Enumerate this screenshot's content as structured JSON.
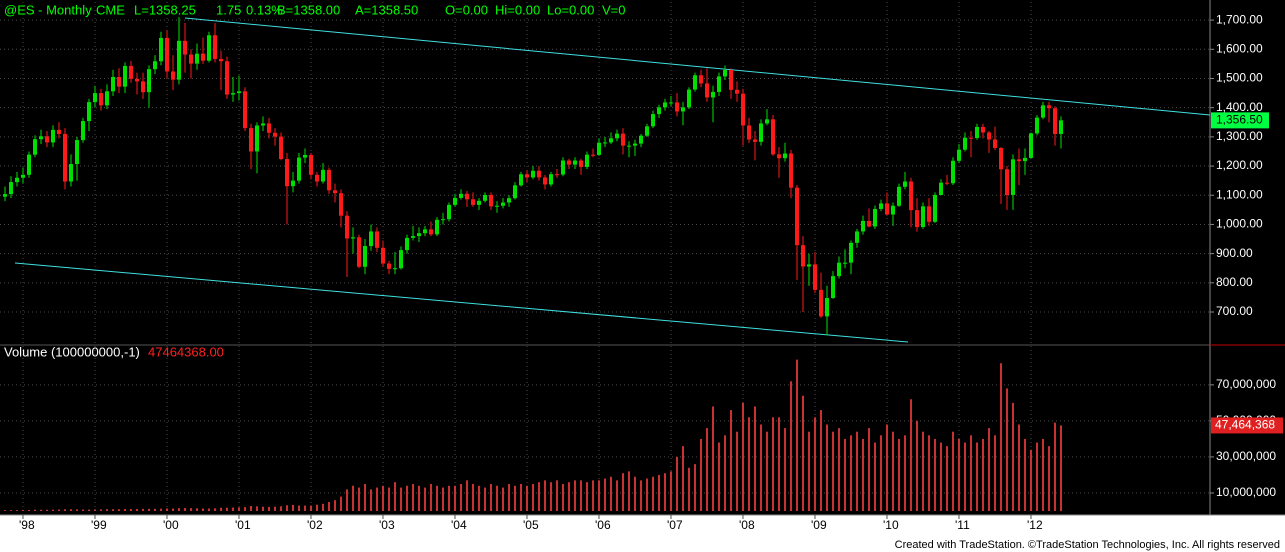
{
  "chart_data": [
    {
      "type": "candlestick",
      "title": "@ES - Monthly",
      "quote": [
        "CME",
        "L=1358.25",
        "1.75",
        "0.13%",
        "B=1358.00",
        "A=1358.50",
        "O=0.00",
        "Hi=0.00",
        "Lo=0.00",
        "V=0"
      ],
      "categories": [
        null,
        null,
        null,
        "'98",
        null,
        null,
        null,
        null,
        null,
        null,
        null,
        null,
        null,
        null,
        null,
        "'99",
        null,
        null,
        null,
        null,
        null,
        null,
        null,
        null,
        null,
        null,
        null,
        "'00",
        null,
        null,
        null,
        null,
        null,
        null,
        null,
        null,
        null,
        null,
        null,
        "'01",
        null,
        null,
        null,
        null,
        null,
        null,
        null,
        null,
        null,
        null,
        null,
        "'02",
        null,
        null,
        null,
        null,
        null,
        null,
        null,
        null,
        null,
        null,
        null,
        "'03",
        null,
        null,
        null,
        null,
        null,
        null,
        null,
        null,
        null,
        null,
        null,
        "'04",
        null,
        null,
        null,
        null,
        null,
        null,
        null,
        null,
        null,
        null,
        null,
        "'05",
        null,
        null,
        null,
        null,
        null,
        null,
        null,
        null,
        null,
        null,
        null,
        "'06",
        null,
        null,
        null,
        null,
        null,
        null,
        null,
        null,
        null,
        null,
        null,
        "'07",
        null,
        null,
        null,
        null,
        null,
        null,
        null,
        null,
        null,
        null,
        null,
        "'08",
        null,
        null,
        null,
        null,
        null,
        null,
        null,
        null,
        null,
        null,
        null,
        "'09",
        null,
        null,
        null,
        null,
        null,
        null,
        null,
        null,
        null,
        null,
        null,
        "'10",
        null,
        null,
        null,
        null,
        null,
        null,
        null,
        null,
        null,
        null,
        null,
        "'11",
        null,
        null,
        null,
        null,
        null,
        null,
        null,
        null,
        null,
        null,
        null,
        "'12",
        null,
        null,
        null,
        null,
        null
      ],
      "open": [
        1095,
        1104,
        1145,
        1160,
        1170,
        1239,
        1292,
        1302,
        1281,
        1324,
        1310,
        1147,
        1207,
        1289,
        1354,
        1419,
        1450,
        1408,
        1456,
        1505,
        1472,
        1543,
        1499,
        1490,
        1453,
        1532,
        1559,
        1639,
        1524,
        1496,
        1629,
        1582,
        1551,
        1585,
        1561,
        1648,
        1567,
        1559,
        1445,
        1450,
        1456,
        1330,
        1250,
        1339,
        1346,
        1314,
        1301,
        1224,
        1131,
        1150,
        1229,
        1238,
        1170,
        1147,
        1187,
        1117,
        1107,
        1030,
        952,
        956,
        855,
        926,
        976,
        920,
        866,
        848,
        850,
        912,
        954,
        960,
        970,
        983,
        966,
        1016,
        1018,
        1067,
        1091,
        1105,
        1086,
        1067,
        1081,
        1101,
        1062,
        1064,
        1075,
        1090,
        1134,
        1172,
        1161,
        1184,
        1161,
        1137,
        1172,
        1171,
        1219,
        1205,
        1219,
        1197,
        1239,
        1238,
        1280,
        1281,
        1295,
        1311,
        1270,
        1270,
        1277,
        1304,
        1336,
        1378,
        1401,
        1418,
        1418,
        1387,
        1401,
        1462,
        1511,
        1483,
        1435,
        1454,
        1507,
        1529,
        1461,
        1448,
        1339,
        1291,
        1283,
        1346,
        1360,
        1240,
        1227,
        1243,
        1126,
        929,
        856,
        863,
        776,
        685,
        748,
        823,
        869,
        869,
        937,
        976,
        1012,
        993,
        1053,
        1072,
        1034,
        1064,
        1129,
        1147,
        1049,
        991,
        1062,
        1009,
        1101,
        1143,
        1141,
        1218,
        1256,
        1297,
        1296,
        1334,
        1315,
        1291,
        1262,
        1189,
        1101,
        1223,
        1217,
        1228,
        1312,
        1366,
        1408,
        1398,
        1310
      ],
      "high": [
        1130,
        1165,
        1180,
        1195,
        1250,
        1305,
        1325,
        1320,
        1340,
        1350,
        1330,
        1240,
        1300,
        1365,
        1430,
        1475,
        1465,
        1480,
        1530,
        1535,
        1555,
        1560,
        1520,
        1520,
        1545,
        1580,
        1660,
        1665,
        1580,
        1710,
        1690,
        1600,
        1620,
        1640,
        1660,
        1690,
        1595,
        1575,
        1505,
        1510,
        1470,
        1345,
        1350,
        1370,
        1365,
        1330,
        1315,
        1245,
        1180,
        1245,
        1260,
        1245,
        1180,
        1210,
        1195,
        1140,
        1120,
        1045,
        990,
        965,
        950,
        1000,
        990,
        945,
        875,
        905,
        925,
        965,
        995,
        990,
        995,
        1010,
        1025,
        1040,
        1075,
        1105,
        1120,
        1115,
        1110,
        1090,
        1110,
        1110,
        1080,
        1090,
        1100,
        1145,
        1180,
        1185,
        1200,
        1200,
        1170,
        1180,
        1190,
        1230,
        1225,
        1230,
        1225,
        1250,
        1260,
        1295,
        1300,
        1315,
        1325,
        1330,
        1285,
        1290,
        1310,
        1345,
        1390,
        1410,
        1430,
        1440,
        1450,
        1420,
        1470,
        1520,
        1530,
        1535,
        1475,
        1520,
        1545,
        1535,
        1490,
        1465,
        1365,
        1320,
        1360,
        1395,
        1375,
        1265,
        1280,
        1255,
        1135,
        960,
        900,
        905,
        835,
        790,
        840,
        890,
        915,
        945,
        985,
        1030,
        1055,
        1065,
        1085,
        1110,
        1075,
        1140,
        1180,
        1160,
        1090,
        1075,
        1090,
        1110,
        1155,
        1170,
        1230,
        1275,
        1315,
        1320,
        1345,
        1345,
        1320,
        1335,
        1265,
        1200,
        1240,
        1260,
        1260,
        1315,
        1375,
        1420,
        1420,
        1405,
        1370
      ],
      "low": [
        1080,
        1090,
        1130,
        1140,
        1160,
        1230,
        1275,
        1265,
        1265,
        1295,
        1120,
        1130,
        1150,
        1280,
        1320,
        1400,
        1390,
        1395,
        1440,
        1450,
        1450,
        1485,
        1445,
        1430,
        1400,
        1515,
        1545,
        1500,
        1460,
        1480,
        1520,
        1500,
        1530,
        1550,
        1555,
        1555,
        1460,
        1430,
        1420,
        1425,
        1320,
        1190,
        1175,
        1320,
        1295,
        1270,
        1220,
        1000,
        1110,
        1140,
        1210,
        1155,
        1130,
        1140,
        1105,
        1075,
        990,
        820,
        900,
        850,
        830,
        910,
        905,
        855,
        830,
        830,
        845,
        900,
        945,
        940,
        960,
        960,
        960,
        1000,
        1010,
        1060,
        1085,
        1060,
        1060,
        1050,
        1075,
        1050,
        1040,
        1055,
        1060,
        1085,
        1130,
        1145,
        1155,
        1150,
        1120,
        1130,
        1160,
        1165,
        1190,
        1190,
        1170,
        1190,
        1230,
        1235,
        1265,
        1275,
        1285,
        1240,
        1230,
        1235,
        1265,
        1300,
        1330,
        1365,
        1390,
        1405,
        1370,
        1340,
        1395,
        1455,
        1470,
        1420,
        1350,
        1440,
        1495,
        1430,
        1420,
        1270,
        1280,
        1220,
        1270,
        1340,
        1235,
        1160,
        1215,
        1090,
        810,
        700,
        790,
        765,
        680,
        620,
        745,
        815,
        850,
        830,
        920,
        965,
        990,
        985,
        1045,
        1030,
        995,
        1060,
        1120,
        990,
        975,
        985,
        995,
        1005,
        1100,
        1135,
        1135,
        1210,
        1250,
        1230,
        1290,
        1295,
        1245,
        1255,
        1070,
        1050,
        1050,
        1135,
        1170,
        1225,
        1305,
        1360,
        1350,
        1270,
        1260
      ],
      "close": [
        1104,
        1145,
        1160,
        1170,
        1239,
        1292,
        1302,
        1281,
        1324,
        1310,
        1147,
        1207,
        1289,
        1354,
        1419,
        1450,
        1408,
        1456,
        1505,
        1472,
        1543,
        1499,
        1490,
        1453,
        1532,
        1559,
        1639,
        1524,
        1496,
        1629,
        1582,
        1551,
        1585,
        1561,
        1648,
        1567,
        1559,
        1445,
        1450,
        1456,
        1330,
        1250,
        1339,
        1346,
        1314,
        1301,
        1224,
        1131,
        1150,
        1229,
        1238,
        1170,
        1147,
        1187,
        1117,
        1107,
        1030,
        952,
        956,
        855,
        926,
        976,
        920,
        866,
        848,
        850,
        912,
        954,
        960,
        970,
        983,
        966,
        1016,
        1018,
        1067,
        1091,
        1105,
        1086,
        1067,
        1081,
        1101,
        1062,
        1064,
        1075,
        1090,
        1134,
        1172,
        1161,
        1184,
        1161,
        1137,
        1172,
        1171,
        1219,
        1205,
        1219,
        1197,
        1239,
        1238,
        1280,
        1281,
        1295,
        1311,
        1270,
        1270,
        1277,
        1304,
        1336,
        1378,
        1401,
        1418,
        1418,
        1387,
        1401,
        1462,
        1511,
        1483,
        1435,
        1454,
        1507,
        1529,
        1461,
        1448,
        1339,
        1291,
        1283,
        1346,
        1360,
        1240,
        1227,
        1243,
        1126,
        929,
        856,
        863,
        776,
        685,
        748,
        823,
        869,
        869,
        937,
        976,
        1012,
        993,
        1053,
        1072,
        1034,
        1064,
        1129,
        1147,
        1049,
        991,
        1062,
        1009,
        1101,
        1143,
        1141,
        1218,
        1256,
        1297,
        1296,
        1334,
        1315,
        1291,
        1262,
        1189,
        1101,
        1223,
        1217,
        1228,
        1312,
        1366,
        1408,
        1398,
        1310,
        1356.5
      ],
      "last_label": "1,356.50",
      "up_color": "#00e000",
      "down_color": "#ff1a1a",
      "last_color": "#00ff40",
      "ylim": [
        587,
        1762
      ],
      "yticks": [
        {
          "value": 700,
          "label": "700.00"
        },
        {
          "value": 800,
          "label": "800.00"
        },
        {
          "value": 900,
          "label": "900.00"
        },
        {
          "value": 1000,
          "label": "1,000.00"
        },
        {
          "value": 1100,
          "label": "1,100.00"
        },
        {
          "value": 1200,
          "label": "1,200.00"
        },
        {
          "value": 1300,
          "label": "1,300.00"
        },
        {
          "value": 1400,
          "label": "1,400.00"
        },
        {
          "value": 1500,
          "label": "1,500.00"
        },
        {
          "value": 1600,
          "label": "1,600.00"
        },
        {
          "value": 1700,
          "label": "1,700.00"
        }
      ],
      "grid": true
    },
    {
      "type": "bar",
      "title": "Volume (100000000,-1)",
      "readout": "47464368.00",
      "values": [
        500000,
        500000,
        500000,
        600000,
        600000,
        700000,
        700000,
        700000,
        700000,
        800000,
        1000000,
        1000000,
        900000,
        800000,
        800000,
        900000,
        900000,
        1000000,
        1000000,
        1000000,
        1100000,
        1100000,
        1100000,
        1200000,
        1200000,
        1200000,
        1300000,
        1400000,
        1400000,
        1600000,
        1700000,
        1600000,
        1500000,
        1400000,
        1400000,
        1500000,
        1800000,
        1800000,
        1900000,
        2000000,
        2200000,
        2800000,
        2600000,
        2400000,
        2300000,
        2400000,
        2600000,
        3200000,
        3400000,
        3000000,
        3000000,
        3000000,
        3500000,
        4000000,
        5000000,
        6000000,
        8000000,
        12000000,
        14000000,
        13000000,
        15000000,
        12000000,
        13000000,
        14000000,
        13000000,
        16000000,
        13000000,
        14000000,
        15000000,
        14000000,
        13000000,
        15000000,
        14000000,
        13000000,
        14000000,
        14000000,
        15000000,
        17000000,
        15000000,
        14000000,
        13000000,
        15000000,
        14000000,
        13000000,
        15000000,
        14000000,
        15000000,
        14000000,
        15000000,
        16000000,
        17000000,
        16000000,
        17000000,
        15000000,
        16000000,
        17000000,
        17000000,
        16000000,
        17000000,
        17000000,
        18000000,
        19000000,
        17000000,
        21000000,
        22000000,
        19000000,
        17000000,
        18000000,
        19000000,
        20000000,
        21000000,
        22000000,
        30000000,
        36000000,
        24000000,
        26000000,
        40000000,
        46000000,
        58000000,
        38000000,
        42000000,
        56000000,
        44000000,
        60000000,
        52000000,
        58000000,
        48000000,
        44000000,
        52000000,
        52000000,
        46000000,
        72000000,
        84000000,
        64000000,
        44000000,
        52000000,
        56000000,
        48000000,
        44000000,
        46000000,
        40000000,
        42000000,
        44000000,
        40000000,
        46000000,
        38000000,
        42000000,
        48000000,
        44000000,
        40000000,
        42000000,
        62000000,
        50000000,
        44000000,
        42000000,
        40000000,
        38000000,
        36000000,
        44000000,
        40000000,
        38000000,
        42000000,
        38000000,
        40000000,
        46000000,
        42000000,
        82000000,
        68000000,
        60000000,
        48000000,
        40000000,
        34000000,
        38000000,
        40000000,
        36000000,
        49000000,
        47464368
      ],
      "last_label": "47,464,368",
      "color": "#c83232",
      "last_color": "#e02020",
      "ylim": [
        0,
        91000000
      ],
      "yticks": [
        {
          "value": 10000000,
          "label": "10,000,000"
        },
        {
          "value": 30000000,
          "label": "30,000,000"
        },
        {
          "value": 50000000,
          "label": "50,000,000"
        },
        {
          "value": 70000000,
          "label": "70,000,000"
        }
      ],
      "grid": true
    }
  ],
  "footer": "Created with TradeStation. ©TradeStation Technologies, Inc. All rights reserved"
}
